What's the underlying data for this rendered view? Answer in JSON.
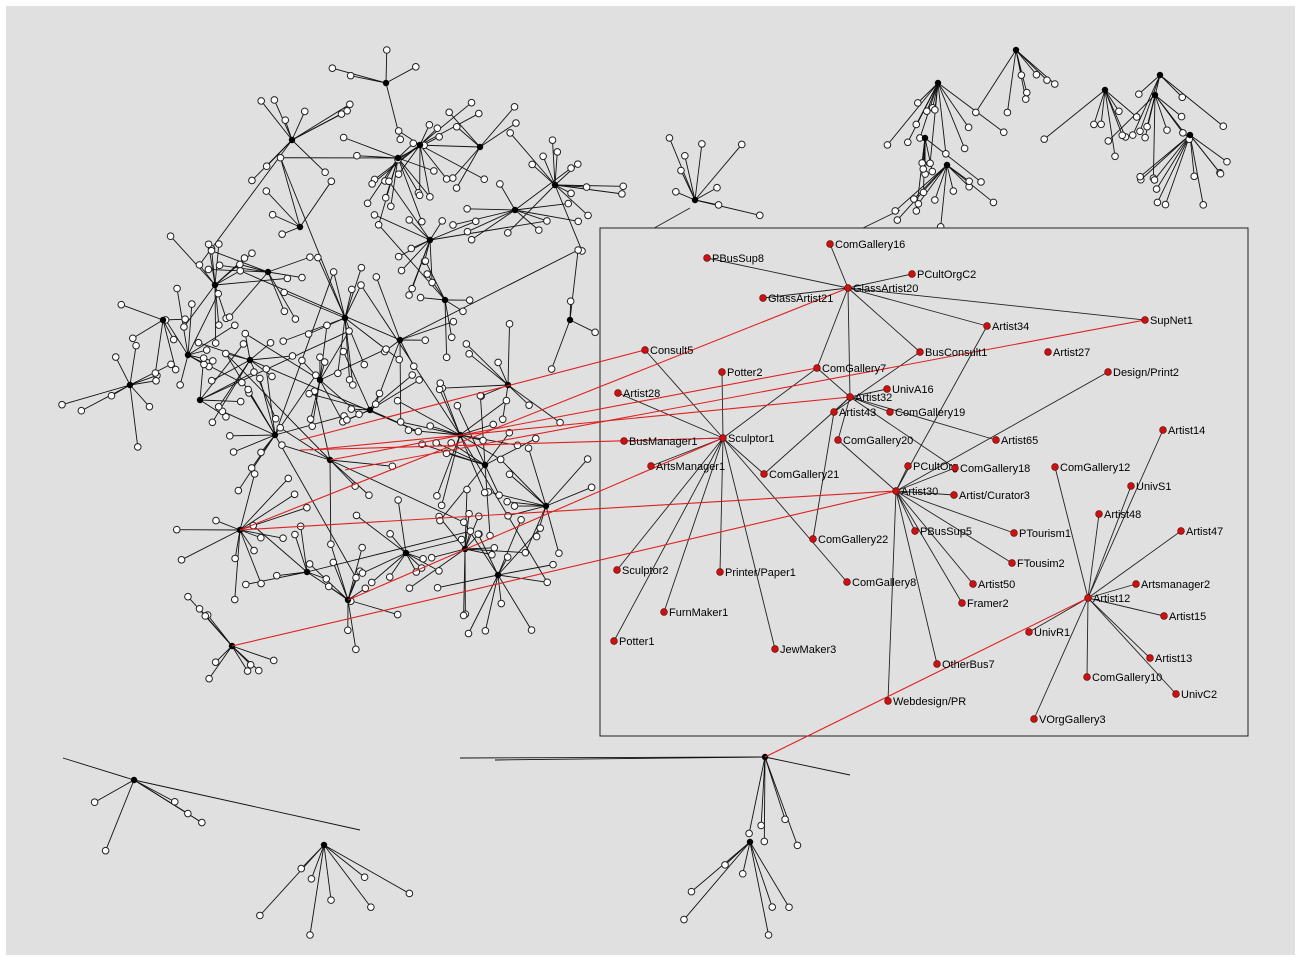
{
  "canvas": {
    "background": "#e0e0e0"
  },
  "colors": {
    "highlight_edge": "#e02020",
    "highlight_node": "#cc1111",
    "edge": "#111111"
  },
  "zoom_nodes": [
    {
      "id": "ComGallery16",
      "label": "ComGallery16"
    },
    {
      "id": "PBusSup8",
      "label": "PBusSup8"
    },
    {
      "id": "PCultOrgC2",
      "label": "PCultOrgC2"
    },
    {
      "id": "GlassArtist20",
      "label": "GlassArtist20"
    },
    {
      "id": "GlassArtist21",
      "label": "GlassArtist21"
    },
    {
      "id": "SupNet1",
      "label": "SupNet1"
    },
    {
      "id": "Artist34",
      "label": "Artist34"
    },
    {
      "id": "Consult5",
      "label": "Consult5"
    },
    {
      "id": "BusConsult1",
      "label": "BusConsult1"
    },
    {
      "id": "Artist27",
      "label": "Artist27"
    },
    {
      "id": "Potter2",
      "label": "Potter2"
    },
    {
      "id": "ComGallery7",
      "label": "ComGallery7"
    },
    {
      "id": "Design/Print2",
      "label": "Design/Print2"
    },
    {
      "id": "UnivA16",
      "label": "UnivA16"
    },
    {
      "id": "Artist28",
      "label": "Artist28"
    },
    {
      "id": "Artist32",
      "label": "Artist32"
    },
    {
      "id": "Artist43",
      "label": "Artist43"
    },
    {
      "id": "ComGallery19",
      "label": "ComGallery19"
    },
    {
      "id": "Artist14",
      "label": "Artist14"
    },
    {
      "id": "Sculptor1",
      "label": "Sculptor1"
    },
    {
      "id": "BusManager1",
      "label": "BusManager1"
    },
    {
      "id": "ComGallery20",
      "label": "ComGallery20"
    },
    {
      "id": "Artist65",
      "label": "Artist65"
    },
    {
      "id": "ArtsManager1",
      "label": "ArtsManager1"
    },
    {
      "id": "PCultOrg",
      "label": "PCultOrg"
    },
    {
      "id": "ComGallery18",
      "label": "ComGallery18"
    },
    {
      "id": "ComGallery12",
      "label": "ComGallery12"
    },
    {
      "id": "ComGallery21",
      "label": "ComGallery21"
    },
    {
      "id": "Artist30",
      "label": "Artist30"
    },
    {
      "id": "UnivS1",
      "label": "UnivS1"
    },
    {
      "id": "Artist/Curator3",
      "label": "Artist/Curator3"
    },
    {
      "id": "Artist48",
      "label": "Artist48"
    },
    {
      "id": "PTourism1",
      "label": "PTourism1"
    },
    {
      "id": "Artist47",
      "label": "Artist47"
    },
    {
      "id": "PBusSup5",
      "label": "PBusSup5"
    },
    {
      "id": "ComGallery22",
      "label": "ComGallery22"
    },
    {
      "id": "FTousim2",
      "label": "FTousim2"
    },
    {
      "id": "Sculptor2",
      "label": "Sculptor2"
    },
    {
      "id": "Printer/Paper1",
      "label": "Printer/Paper1"
    },
    {
      "id": "ComGallery8",
      "label": "ComGallery8"
    },
    {
      "id": "Artist50",
      "label": "Artist50"
    },
    {
      "id": "Artsmanager2",
      "label": "Artsmanager2"
    },
    {
      "id": "Artist12",
      "label": "Artist12"
    },
    {
      "id": "Framer2",
      "label": "Framer2"
    },
    {
      "id": "FurnMaker1",
      "label": "FurnMaker1"
    },
    {
      "id": "Artist15",
      "label": "Artist15"
    },
    {
      "id": "UnivR1",
      "label": "UnivR1"
    },
    {
      "id": "Potter1",
      "label": "Potter1"
    },
    {
      "id": "JewMaker3",
      "label": "JewMaker3"
    },
    {
      "id": "Artist13",
      "label": "Artist13"
    },
    {
      "id": "OtherBus7",
      "label": "OtherBus7"
    },
    {
      "id": "ComGallery10",
      "label": "ComGallery10"
    },
    {
      "id": "UnivC2",
      "label": "UnivC2"
    },
    {
      "id": "Webdesign/PR",
      "label": "Webdesign/PR"
    },
    {
      "id": "VOrgGallery3",
      "label": "VOrgGallery3"
    }
  ],
  "zoom_edges": [
    [
      "GlassArtist20",
      "ComGallery16"
    ],
    [
      "GlassArtist20",
      "PBusSup8"
    ],
    [
      "GlassArtist20",
      "PCultOrgC2"
    ],
    [
      "GlassArtist20",
      "GlassArtist21"
    ],
    [
      "GlassArtist20",
      "SupNet1"
    ],
    [
      "GlassArtist20",
      "Artist34"
    ],
    [
      "GlassArtist20",
      "BusConsult1"
    ],
    [
      "GlassArtist20",
      "ComGallery7"
    ],
    [
      "GlassArtist20",
      "Artist32"
    ],
    [
      "Sculptor1",
      "Consult5"
    ],
    [
      "Sculptor1",
      "Potter2"
    ],
    [
      "Sculptor1",
      "Artist28"
    ],
    [
      "Sculptor1",
      "BusManager1"
    ],
    [
      "Sculptor1",
      "ArtsManager1"
    ],
    [
      "Sculptor1",
      "Sculptor2"
    ],
    [
      "Sculptor1",
      "Printer/Paper1"
    ],
    [
      "Sculptor1",
      "FurnMaker1"
    ],
    [
      "Sculptor1",
      "Potter1"
    ],
    [
      "Sculptor1",
      "JewMaker3"
    ],
    [
      "Sculptor1",
      "ComGallery7"
    ],
    [
      "Sculptor1",
      "ComGallery8"
    ],
    [
      "Sculptor1",
      "ComGallery21"
    ],
    [
      "Artist32",
      "UnivA16"
    ],
    [
      "Artist32",
      "Artist43"
    ],
    [
      "Artist32",
      "ComGallery19"
    ],
    [
      "Artist32",
      "ComGallery20"
    ],
    [
      "Artist32",
      "Artist65"
    ],
    [
      "Artist32",
      "ComGallery21"
    ],
    [
      "Artist32",
      "ComGallery18"
    ],
    [
      "Artist32",
      "ComGallery7"
    ],
    [
      "Artist43",
      "ComGallery22"
    ],
    [
      "Artist43",
      "BusConsult1"
    ],
    [
      "Artist30",
      "PCultOrg"
    ],
    [
      "Artist30",
      "ComGallery18"
    ],
    [
      "Artist30",
      "Artist/Curator3"
    ],
    [
      "Artist30",
      "PTourism1"
    ],
    [
      "Artist30",
      "PBusSup5"
    ],
    [
      "Artist30",
      "FTousim2"
    ],
    [
      "Artist30",
      "Artist50"
    ],
    [
      "Artist30",
      "Framer2"
    ],
    [
      "Artist30",
      "OtherBus7"
    ],
    [
      "Artist30",
      "Webdesign/PR"
    ],
    [
      "Artist30",
      "Artist34"
    ],
    [
      "Artist30",
      "Design/Print2"
    ],
    [
      "Artist30",
      "ComGallery20"
    ],
    [
      "Artist12",
      "ComGallery12"
    ],
    [
      "Artist12",
      "Artist14"
    ],
    [
      "Artist12",
      "UnivS1"
    ],
    [
      "Artist12",
      "Artist48"
    ],
    [
      "Artist12",
      "Artist47"
    ],
    [
      "Artist12",
      "Artsmanager2"
    ],
    [
      "Artist12",
      "Artist15"
    ],
    [
      "Artist12",
      "Artist13"
    ],
    [
      "Artist12",
      "UnivC2"
    ],
    [
      "Artist12",
      "ComGallery10"
    ],
    [
      "Artist12",
      "UnivR1"
    ],
    [
      "Artist12",
      "VOrgGallery3"
    ]
  ]
}
